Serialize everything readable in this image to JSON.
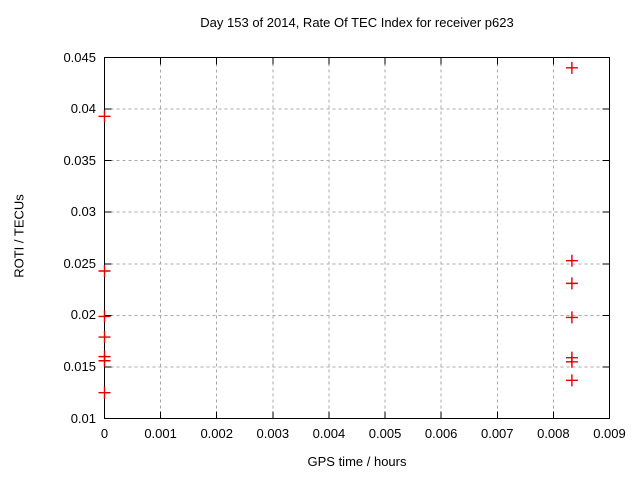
{
  "colors": {
    "marker": "#e00000",
    "grid": "#a8a8a8",
    "axis": "#000000",
    "background": "#ffffff",
    "text": "#000000"
  },
  "chart_data": {
    "type": "scatter",
    "title": "Day 153 of 2014, Rate Of TEC Index for receiver p623",
    "xlabel": "GPS time / hours",
    "ylabel": "ROTI / TECUs",
    "xlim": [
      0,
      0.009
    ],
    "ylim": [
      0.01,
      0.045
    ],
    "x_ticks": [
      {
        "v": 0,
        "label": "0"
      },
      {
        "v": 0.001,
        "label": "0.001"
      },
      {
        "v": 0.002,
        "label": "0.002"
      },
      {
        "v": 0.003,
        "label": "0.003"
      },
      {
        "v": 0.004,
        "label": "0.004"
      },
      {
        "v": 0.005,
        "label": "0.005"
      },
      {
        "v": 0.006,
        "label": "0.006"
      },
      {
        "v": 0.007,
        "label": "0.007"
      },
      {
        "v": 0.008,
        "label": "0.008"
      },
      {
        "v": 0.009,
        "label": "0.009"
      }
    ],
    "y_ticks": [
      {
        "v": 0.01,
        "label": "0.01"
      },
      {
        "v": 0.015,
        "label": "0.015"
      },
      {
        "v": 0.02,
        "label": "0.02"
      },
      {
        "v": 0.025,
        "label": "0.025"
      },
      {
        "v": 0.03,
        "label": "0.03"
      },
      {
        "v": 0.035,
        "label": "0.035"
      },
      {
        "v": 0.04,
        "label": "0.04"
      },
      {
        "v": 0.045,
        "label": "0.045"
      }
    ],
    "grid": true,
    "legend": "none",
    "marker": "plus",
    "points": [
      [
        0,
        0.0393
      ],
      [
        0,
        0.0243
      ],
      [
        0,
        0.0199
      ],
      [
        0,
        0.0179
      ],
      [
        0,
        0.016
      ],
      [
        0,
        0.0156
      ],
      [
        0,
        0.0125
      ],
      [
        0.00833,
        0.044
      ],
      [
        0.00833,
        0.0253
      ],
      [
        0.00833,
        0.0231
      ],
      [
        0.00833,
        0.0198
      ],
      [
        0.00833,
        0.0159
      ],
      [
        0.00833,
        0.0155
      ],
      [
        0.00833,
        0.0137
      ]
    ]
  }
}
